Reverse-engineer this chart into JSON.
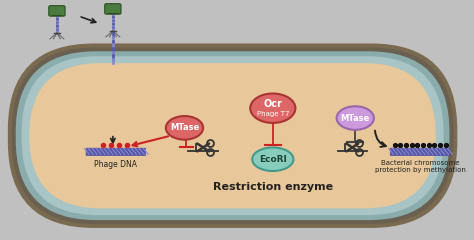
{
  "outer_bg": "#c0c0c0",
  "cell_fill": "#e8c89a",
  "cell_dark_ring": "#7a7060",
  "cell_teal_ring": "#8ab0b0",
  "cell_inner_ring": "#b09070",
  "phage_green": "#4a7c3f",
  "phage_dark": "#2a5020",
  "dna_stripe1": "#5555aa",
  "dna_stripe2": "#8888cc",
  "mtase1_fill": "#dd6666",
  "mtase1_edge": "#aa3333",
  "mtase2_fill": "#cc99dd",
  "mtase2_edge": "#9966aa",
  "ocr_fill": "#dd6666",
  "ocr_edge": "#aa3333",
  "ecori_fill": "#88ccbb",
  "ecori_edge": "#44998a",
  "red_arrow": "#cc2222",
  "black": "#222222",
  "dark_gray": "#444444",
  "scissors_color": "#333333",
  "dot_red": "#cc2222",
  "dot_black": "#111111",
  "title": "Restriction enzyme",
  "label_phage_dna": "Phage DNA",
  "label_bacterial": "Bacterial chromosome\nprotection by methylation",
  "label_ocr_1": "Ocr",
  "label_ocr_2": "Phage T7",
  "label_mtase": "MTase",
  "label_ecori": "EcoRI"
}
